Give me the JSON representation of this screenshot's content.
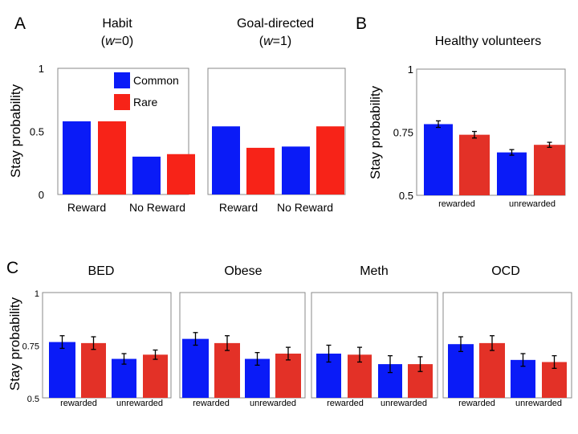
{
  "figure": {
    "panel_labels": {
      "A": "A",
      "B": "B",
      "C": "C"
    },
    "ylabel": "Stay probability",
    "legend": [
      {
        "name": "Common",
        "color": "#0a1bf7"
      },
      {
        "name": "Rare",
        "color": "#f72318"
      }
    ]
  },
  "colors": {
    "common": "#0a1bf7",
    "rare_a": "#f72318",
    "rare_c": "#e33127",
    "axis": "#888888"
  },
  "chart_data": [
    {
      "id": "habit",
      "type": "bar",
      "title": [
        "Habit",
        "(w=0)"
      ],
      "categories": [
        "Reward",
        "No Reward"
      ],
      "series": [
        {
          "name": "Common",
          "values": [
            0.58,
            0.3
          ]
        },
        {
          "name": "Rare",
          "values": [
            0.58,
            0.32
          ]
        }
      ],
      "ylim": [
        0,
        1
      ],
      "yticks": [
        "0",
        "0.5",
        "1"
      ],
      "ytick_values": [
        0,
        0.5,
        1
      ],
      "legend": "top-right"
    },
    {
      "id": "goal",
      "type": "bar",
      "title": [
        "Goal-directed",
        "(w=1)"
      ],
      "categories": [
        "Reward",
        "No Reward"
      ],
      "series": [
        {
          "name": "Common",
          "values": [
            0.54,
            0.38
          ]
        },
        {
          "name": "Rare",
          "values": [
            0.37,
            0.54
          ]
        }
      ],
      "ylim": [
        0,
        1
      ]
    },
    {
      "id": "healthy",
      "type": "bar",
      "title": [
        "Healthy volunteers"
      ],
      "categories": [
        "rewarded",
        "unrewarded"
      ],
      "series": [
        {
          "values": [
            0.782,
            0.67
          ],
          "errors": [
            0.013,
            0.011
          ]
        },
        {
          "values": [
            0.74,
            0.7
          ],
          "errors": [
            0.013,
            0.01
          ]
        }
      ],
      "ylim": [
        0.5,
        1
      ],
      "yticks": [
        "0.5",
        "0.75",
        "1"
      ],
      "ytick_values": [
        0.5,
        0.75,
        1
      ]
    },
    {
      "id": "bed",
      "type": "bar",
      "title": [
        "BED"
      ],
      "categories": [
        "rewarded",
        "unrewarded"
      ],
      "series": [
        {
          "values": [
            0.765,
            0.685
          ],
          "errors": [
            0.03,
            0.025
          ]
        },
        {
          "values": [
            0.76,
            0.705
          ],
          "errors": [
            0.03,
            0.022
          ]
        }
      ],
      "ylim": [
        0.5,
        1
      ],
      "yticks": [
        "0.5",
        "0.75",
        "1"
      ],
      "ytick_values": [
        0.5,
        0.75,
        1
      ]
    },
    {
      "id": "obese",
      "type": "bar",
      "title": [
        "Obese"
      ],
      "categories": [
        "rewarded",
        "unrewarded"
      ],
      "series": [
        {
          "values": [
            0.78,
            0.685
          ],
          "errors": [
            0.03,
            0.03
          ]
        },
        {
          "values": [
            0.76,
            0.71
          ],
          "errors": [
            0.035,
            0.03
          ]
        }
      ],
      "ylim": [
        0.5,
        1
      ]
    },
    {
      "id": "meth",
      "type": "bar",
      "title": [
        "Meth"
      ],
      "categories": [
        "rewarded",
        "unrewarded"
      ],
      "series": [
        {
          "values": [
            0.71,
            0.66
          ],
          "errors": [
            0.04,
            0.04
          ]
        },
        {
          "values": [
            0.705,
            0.66
          ],
          "errors": [
            0.035,
            0.035
          ]
        }
      ],
      "ylim": [
        0.5,
        1
      ]
    },
    {
      "id": "ocd",
      "type": "bar",
      "title": [
        "OCD"
      ],
      "categories": [
        "rewarded",
        "unrewarded"
      ],
      "series": [
        {
          "values": [
            0.755,
            0.68
          ],
          "errors": [
            0.035,
            0.03
          ]
        },
        {
          "values": [
            0.76,
            0.67
          ],
          "errors": [
            0.035,
            0.03
          ]
        }
      ],
      "ylim": [
        0.5,
        1
      ]
    }
  ]
}
